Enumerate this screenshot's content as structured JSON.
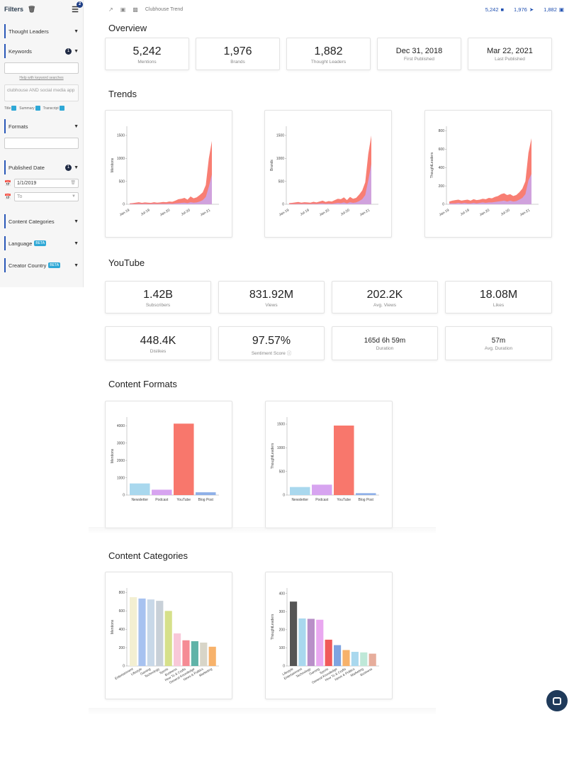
{
  "sidebar": {
    "title": "Filters",
    "filter_count": "2",
    "sections": {
      "thought_leaders": "Thought Leaders",
      "keywords": "Keywords",
      "keywords_badge": "1",
      "help_link": "Help with keyword searches",
      "keyword_query": "clubhouse AND social media app",
      "check_title": "Title",
      "check_summary": "Summary",
      "check_transcript": "Transcript",
      "formats": "Formats",
      "published_date": "Published Date",
      "published_badge": "1",
      "date_from": "1/1/2019",
      "date_to_placeholder": "To",
      "content_categories": "Content Categories",
      "language": "Language",
      "creator_country": "Creator Country",
      "beta": "BETA"
    }
  },
  "topbar": {
    "trend_label": "Clubhouse Trend",
    "stat_mentions": "5,242",
    "stat_brands": "1,976",
    "stat_leaders": "1,882"
  },
  "overview": {
    "title": "Overview",
    "cards": [
      {
        "value": "5,242",
        "label": "Mentions"
      },
      {
        "value": "1,976",
        "label": "Brands"
      },
      {
        "value": "1,882",
        "label": "Thought Leaders"
      },
      {
        "value": "Dec 31, 2018",
        "label": "First Published"
      },
      {
        "value": "Mar 22, 2021",
        "label": "Last Published"
      }
    ]
  },
  "trends": {
    "title": "Trends"
  },
  "youtube": {
    "title": "YouTube",
    "cards": [
      {
        "value": "1.42B",
        "label": "Subscribers"
      },
      {
        "value": "831.92M",
        "label": "Views"
      },
      {
        "value": "202.2K",
        "label": "Avg. Views"
      },
      {
        "value": "18.08M",
        "label": "Likes"
      },
      {
        "value": "448.4K",
        "label": "Dislikes"
      },
      {
        "value": "97.57%",
        "label": "Sentiment Score"
      },
      {
        "value": "165d 6h 59m",
        "label": "Duration"
      },
      {
        "value": "57m",
        "label": "Avg. Duration"
      }
    ]
  },
  "content_formats": {
    "title": "Content Formats"
  },
  "content_categories": {
    "title": "Content Categories"
  },
  "colors": {
    "accent": "#2a58b8",
    "coral": "#f8776c",
    "dark_navy": "#1f3a5a"
  },
  "chart_data": [
    {
      "type": "area",
      "ylabel": "Mentions",
      "x_ticks": [
        "Jan-19",
        "Jul-19",
        "Jan-20",
        "Jul-20",
        "Jan-21"
      ],
      "y_ticks": [
        0,
        500,
        1000,
        1500
      ],
      "ylim": [
        0,
        1700
      ],
      "x": [
        0,
        1,
        2,
        3,
        4,
        5,
        6,
        7,
        8,
        9,
        10,
        11,
        12,
        13,
        14,
        15,
        16,
        17,
        18,
        19,
        20,
        21,
        22,
        23,
        24,
        25,
        26,
        27
      ],
      "series": [
        {
          "values": [
            20,
            25,
            35,
            45,
            30,
            40,
            35,
            30,
            45,
            35,
            40,
            50,
            45,
            60,
            55,
            80,
            110,
            120,
            140,
            100,
            170,
            130,
            150,
            200,
            260,
            420,
            1000,
            1380
          ]
        },
        {
          "values": [
            5,
            5,
            5,
            10,
            5,
            10,
            5,
            5,
            10,
            5,
            10,
            10,
            10,
            15,
            10,
            20,
            25,
            30,
            35,
            25,
            45,
            35,
            40,
            60,
            90,
            160,
            380,
            650
          ]
        }
      ]
    },
    {
      "type": "area",
      "ylabel": "Brands",
      "x_ticks": [
        "Jan-19",
        "Jul-19",
        "Jan-20",
        "Jul-20",
        "Jan-21"
      ],
      "y_ticks": [
        0,
        500,
        1000,
        1500
      ],
      "ylim": [
        0,
        1700
      ],
      "x": [
        0,
        1,
        2,
        3,
        4,
        5,
        6,
        7,
        8,
        9,
        10,
        11,
        12,
        13,
        14,
        15,
        16,
        17,
        18,
        19,
        20,
        21,
        22,
        23,
        24,
        25,
        26,
        27
      ],
      "series": [
        {
          "values": [
            25,
            30,
            40,
            50,
            35,
            45,
            40,
            35,
            55,
            40,
            60,
            80,
            50,
            70,
            60,
            90,
            120,
            110,
            150,
            90,
            160,
            120,
            140,
            210,
            300,
            480,
            1100,
            1500
          ]
        },
        {
          "values": [
            5,
            5,
            5,
            10,
            5,
            10,
            5,
            5,
            10,
            5,
            15,
            20,
            10,
            15,
            10,
            20,
            30,
            25,
            40,
            20,
            45,
            30,
            40,
            70,
            110,
            200,
            520,
            880
          ]
        }
      ]
    },
    {
      "type": "area",
      "ylabel": "ThoughtLeaders",
      "x_ticks": [
        "Jan-19",
        "Jul-19",
        "Jan-20",
        "Jul-20",
        "Jan-21"
      ],
      "y_ticks": [
        0,
        200,
        400,
        600,
        800
      ],
      "ylim": [
        0,
        850
      ],
      "x": [
        0,
        1,
        2,
        3,
        4,
        5,
        6,
        7,
        8,
        9,
        10,
        11,
        12,
        13,
        14,
        15,
        16,
        17,
        18,
        19,
        20,
        21,
        22,
        23,
        24,
        25,
        26,
        27
      ],
      "series": [
        {
          "values": [
            30,
            40,
            45,
            50,
            40,
            45,
            50,
            40,
            55,
            45,
            50,
            60,
            55,
            70,
            65,
            80,
            90,
            110,
            120,
            100,
            110,
            90,
            100,
            130,
            170,
            250,
            560,
            720
          ]
        },
        {
          "values": [
            10,
            10,
            10,
            15,
            10,
            15,
            10,
            10,
            15,
            10,
            15,
            20,
            15,
            20,
            20,
            25,
            30,
            35,
            40,
            30,
            40,
            30,
            35,
            50,
            70,
            110,
            260,
            330
          ]
        }
      ]
    },
    {
      "type": "bar",
      "ylabel": "Mentions",
      "categories": [
        "Newsletter",
        "Podcast",
        "YouTube",
        "Blog Post"
      ],
      "values": [
        670,
        310,
        4120,
        160
      ],
      "colors": [
        "#a9d8ee",
        "#d7a4f0",
        "#f8776c",
        "#8fb0e8"
      ],
      "y_ticks": [
        0,
        1000,
        2000,
        3000,
        4000
      ],
      "ylim": [
        0,
        4500
      ]
    },
    {
      "type": "bar",
      "ylabel": "ThoughtLeaders",
      "categories": [
        "Newsletter",
        "Podcast",
        "YouTube",
        "Blog Post"
      ],
      "values": [
        170,
        220,
        1470,
        40
      ],
      "colors": [
        "#a9d8ee",
        "#d7a4f0",
        "#f8776c",
        "#8fb0e8"
      ],
      "y_ticks": [
        0,
        500,
        1000,
        1500
      ],
      "ylim": [
        0,
        1650
      ]
    },
    {
      "type": "bar",
      "ylabel": "Mentions",
      "categories": [
        "Entertainment",
        "Lifestyle",
        "Gaming",
        "Technology",
        "Sports",
        "Business",
        "How To & Crafts",
        "General Knowledge",
        "News & Politics",
        "Marketing"
      ],
      "values": [
        750,
        735,
        725,
        710,
        600,
        355,
        280,
        270,
        255,
        210
      ],
      "colors": [
        "#f3efd2",
        "#a7c2f0",
        "#c8d8e8",
        "#c8d0d8",
        "#d6e08a",
        "#f8c8d8",
        "#f58b94",
        "#5fb3a8",
        "#d8d5c8",
        "#f7b26b"
      ],
      "y_ticks": [
        0,
        200,
        400,
        600,
        800
      ],
      "ylim": [
        0,
        850
      ]
    },
    {
      "type": "bar",
      "ylabel": "ThoughtLeaders",
      "categories": [
        "Lifestyle",
        "Entertainment",
        "Technology",
        "Gaming",
        "Sports",
        "General Knowledge",
        "How To & Crafts",
        "News & Politics",
        "Marketing",
        "Business"
      ],
      "values": [
        355,
        262,
        260,
        255,
        145,
        115,
        88,
        78,
        75,
        68
      ],
      "colors": [
        "#555555",
        "#a9d8ee",
        "#b98fc8",
        "#e9a8f0",
        "#f05a5a",
        "#7ea4e0",
        "#f7b26b",
        "#a9d8ee",
        "#bfe8d8",
        "#e6ad9c"
      ],
      "y_ticks": [
        0,
        100,
        200,
        300,
        400
      ],
      "ylim": [
        0,
        430
      ]
    }
  ]
}
